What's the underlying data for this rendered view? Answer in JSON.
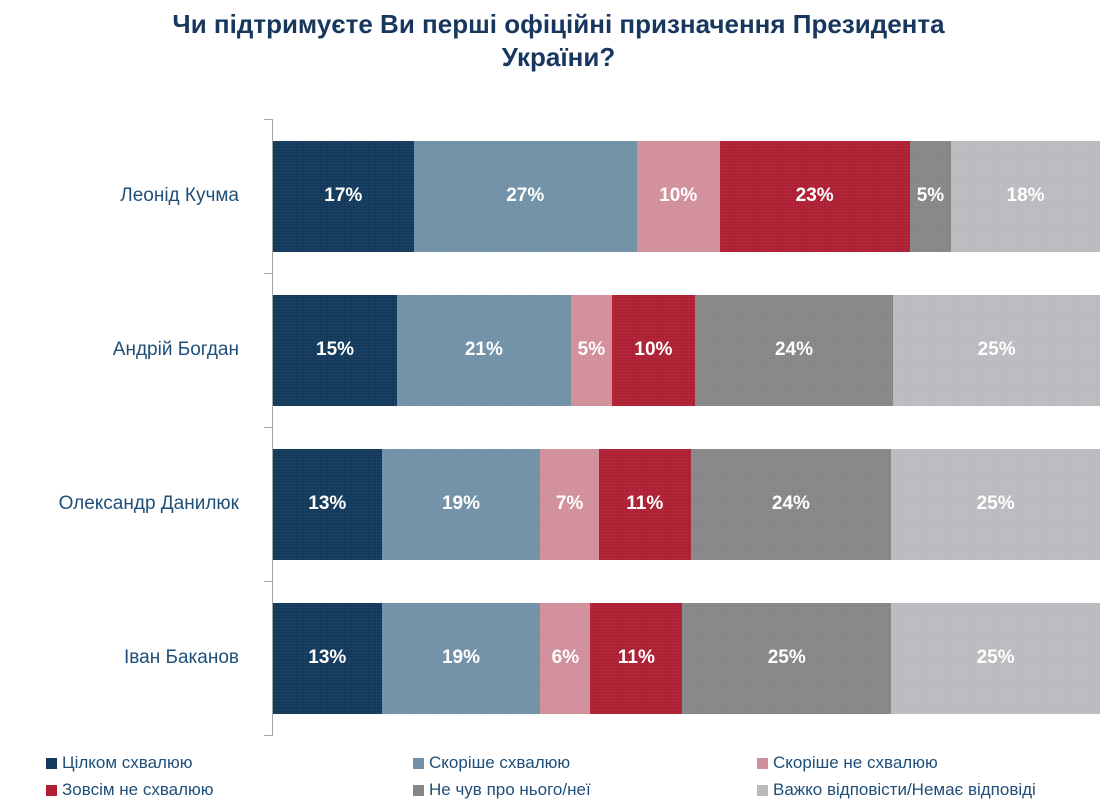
{
  "chart_data": {
    "type": "bar",
    "variant": "horizontal-stacked",
    "title": "Чи підтримуєте Ви перші офіційні призначення Президента України?",
    "categories": [
      "Леонід Кучма",
      "Андрій Богдан",
      "Олександр Данилюк",
      "Іван Баканов"
    ],
    "series": [
      {
        "name": "Цілком схвалюю",
        "color": "#12395B",
        "values": [
          17,
          15,
          13,
          13
        ]
      },
      {
        "name": "Скоріше схвалюю",
        "color": "#7191A7",
        "values": [
          27,
          21,
          19,
          19
        ]
      },
      {
        "name": "Скоріше не схвалюю",
        "color": "#D18E9B",
        "values": [
          10,
          5,
          7,
          6
        ]
      },
      {
        "name": "Зовсім не схвалюю",
        "color": "#AE1F33",
        "values": [
          23,
          10,
          11,
          11
        ]
      },
      {
        "name": "Не чув про нього/неї",
        "color": "#868686",
        "values": [
          5,
          24,
          24,
          25
        ]
      },
      {
        "name": "Важко відповісти/Немає відповіді",
        "color": "#BBBBBF",
        "values": [
          18,
          25,
          25,
          25
        ]
      }
    ],
    "value_suffix": "%",
    "xlim": [
      0,
      100
    ],
    "grid": false,
    "legend_position": "bottom",
    "colors": {
      "title_text": "#17375E",
      "category_text": "#1F4E79",
      "bar_value_text": "#FFFFFF",
      "axis": "#A6A6A6",
      "background": "#FFFFFF"
    }
  }
}
